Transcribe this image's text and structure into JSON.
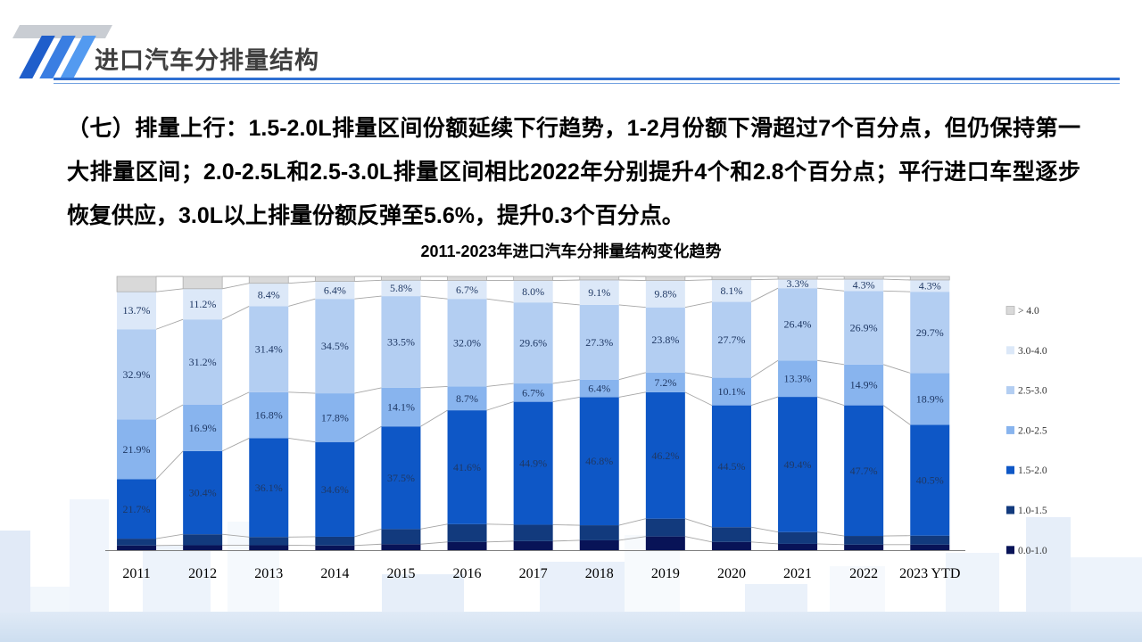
{
  "header": {
    "title": "进口汽车分排量结构"
  },
  "body_text": "（七）排量上行：1.5-2.0L排量区间份额延续下行趋势，1-2月份额下滑超过7个百分点，但仍保持第一大排量区间；2.0-2.5L和2.5-3.0L排量区间相比2022年分别提升4个和2.8个百分点；平行进口车型逐步恢复供应，3.0L以上排量份额反弹至5.6%，提升0.3个百分点。",
  "chart_data": {
    "type": "bar",
    "stacked": true,
    "title": "2011-2023年进口汽车分排量结构变化趋势",
    "categories": [
      "2011",
      "2012",
      "2013",
      "2014",
      "2015",
      "2016",
      "2017",
      "2018",
      "2019",
      "2020",
      "2021",
      "2022",
      "2023 YTD"
    ],
    "ylim": [
      0,
      100
    ],
    "grid": false,
    "legend_position": "right",
    "legend_order_top_to_bottom": [
      "> 4.0",
      "3.0-4.0",
      "2.5-3.0",
      "2.0-2.5",
      "1.5-2.0",
      "1.0-1.5",
      "0.0-1.0"
    ],
    "series": [
      {
        "name": "0.0-1.0",
        "color": "#081357",
        "labeled": false,
        "values": [
          1.7,
          1.8,
          1.8,
          1.7,
          2.2,
          3.0,
          3.3,
          3.6,
          5.0,
          3.0,
          2.3,
          2.0,
          2.0
        ]
      },
      {
        "name": "1.0-1.5",
        "color": "#123a7d",
        "labeled": false,
        "values": [
          2.5,
          4.0,
          3.0,
          3.2,
          5.5,
          6.5,
          6.0,
          5.5,
          6.5,
          5.4,
          4.3,
          3.2,
          3.3
        ]
      },
      {
        "name": "1.5-2.0",
        "color": "#0e57c6",
        "labeled": true,
        "values": [
          21.7,
          30.4,
          36.1,
          34.6,
          37.5,
          41.6,
          44.9,
          46.8,
          46.2,
          44.5,
          49.4,
          47.7,
          40.5
        ]
      },
      {
        "name": "2.0-2.5",
        "color": "#88b4ee",
        "labeled": true,
        "values": [
          21.9,
          16.9,
          16.8,
          17.8,
          14.1,
          8.7,
          6.7,
          6.4,
          7.2,
          10.1,
          13.3,
          14.9,
          18.9
        ]
      },
      {
        "name": "2.5-3.0",
        "color": "#b3cef2",
        "labeled": true,
        "values": [
          32.9,
          31.2,
          31.4,
          34.5,
          33.5,
          32.0,
          29.6,
          27.3,
          23.8,
          27.7,
          26.4,
          26.9,
          29.7
        ]
      },
      {
        "name": "3.0-4.0",
        "color": "#dce8f8",
        "labeled": true,
        "values": [
          13.7,
          11.2,
          8.4,
          6.4,
          5.8,
          6.7,
          8.0,
          9.1,
          9.8,
          8.1,
          3.3,
          4.3,
          4.3
        ]
      },
      {
        "name": "> 4.0",
        "color": "#d9d9d9",
        "labeled": false,
        "values": [
          5.6,
          4.5,
          2.5,
          1.8,
          1.4,
          1.5,
          1.5,
          1.3,
          1.5,
          1.2,
          1.0,
          1.0,
          1.3
        ]
      }
    ]
  },
  "colors": {
    "accent_line": "#2e6fd2",
    "axis_line": "#7f7f7f",
    "connector_line": "#a6a6a6",
    "label_text": "#1f3864"
  }
}
